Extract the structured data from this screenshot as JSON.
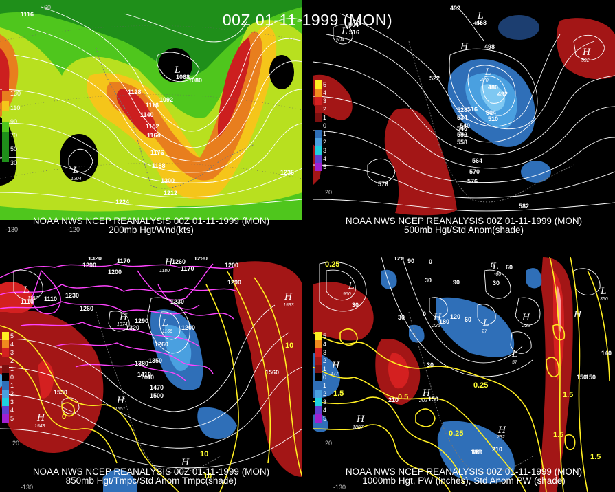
{
  "title": "00Z 01-11-1999 (MON)",
  "panels": {
    "tl": {
      "caption1": "NOAA NWS NCEP REANALYSIS 00Z 01-11-1999 (MON)",
      "caption2": "200mb Hgt/Wnd(kts)",
      "legend": [
        "130",
        "110",
        "90",
        "70",
        "50",
        "30"
      ],
      "contours": [
        "1116",
        "1128",
        "1140",
        "1152",
        "1164",
        "1176",
        "1188",
        "1200",
        "1212",
        "1224",
        "1236",
        "1080",
        "1068",
        "1092",
        "1116"
      ],
      "systems": [
        {
          "letter": "L",
          "value": "1204"
        },
        {
          "letter": "L",
          "value": "1068"
        }
      ],
      "latlon": [
        "60",
        "-120",
        "-130"
      ]
    },
    "tr": {
      "caption1": "NOAA NWS NCEP REANALYSIS 00Z 01-11-1999 (MON)",
      "caption2": "500mb Hgt/Std Anom(shade)",
      "legend": [
        "5",
        "4",
        "3",
        "2",
        "1",
        "0",
        "1",
        "2",
        "3",
        "4",
        "5"
      ],
      "contours": [
        "492",
        "504",
        "516",
        "498",
        "522",
        "480",
        "492",
        "504",
        "510",
        "528",
        "516",
        "534",
        "540",
        "546",
        "552",
        "558",
        "564",
        "570",
        "576",
        "576",
        "582",
        "468"
      ],
      "systems": [
        {
          "letter": "L",
          "value": "504"
        },
        {
          "letter": "H",
          "value": "592"
        },
        {
          "letter": "L",
          "value": "470"
        },
        {
          "letter": "H",
          "value": ""
        },
        {
          "letter": "L",
          "value": "494"
        }
      ],
      "latlon": [
        "20"
      ]
    },
    "bl": {
      "caption1": "NOAA NWS NCEP REANALYSIS 00Z 01-11-1999 (MON)",
      "caption2": "850mb Hgt/Tmpc/Std Anom Tmpc(shade)",
      "legend": [
        "5",
        "4",
        "3",
        "2",
        "1",
        "0",
        "1",
        "2",
        "3",
        "4",
        "5"
      ],
      "contours": [
        "1320",
        "1170",
        "1290",
        "1200",
        "1290",
        "1110",
        "1230",
        "1260",
        "1230",
        "1290",
        "1320",
        "1200",
        "1260",
        "1350",
        "1380",
        "1410",
        "1440",
        "1470",
        "1500",
        "1530",
        "1560",
        "1170",
        "1260",
        "1110",
        "1200",
        "1290"
      ],
      "temps": [
        "0",
        "10",
        "10",
        "10",
        "20"
      ],
      "systems": [
        {
          "letter": "L",
          "value": "1107"
        },
        {
          "letter": "H",
          "value": "1374"
        },
        {
          "letter": "L",
          "value": "1166"
        },
        {
          "letter": "H",
          "value": "1551"
        },
        {
          "letter": "H",
          "value": "1543"
        },
        {
          "letter": "H",
          "value": "1533"
        },
        {
          "letter": "H",
          "value": "1180"
        },
        {
          "letter": "H",
          "value": ""
        }
      ],
      "latlon": [
        "-130",
        "20"
      ]
    },
    "br": {
      "caption1": "NOAA NWS NCEP REANALYSIS 00Z 01-11-1999 (MON)",
      "caption2": "1000mb Hgt, PW (inches), Std Anom PW (shade)",
      "legend": [
        "5",
        "4",
        "3",
        "2",
        "1",
        "0",
        "1",
        "2",
        "3",
        "4",
        "5"
      ],
      "contours": [
        "120",
        "90",
        "0",
        "30",
        "90",
        "60",
        "0",
        "30",
        "120",
        "180",
        "0",
        "60",
        "30",
        "30",
        "150",
        "180",
        "210",
        "150",
        "210",
        "180",
        "140",
        "30",
        "150"
      ],
      "pw": [
        "0.25",
        "1.5",
        "0.25",
        "0.5",
        "0.25",
        "1.5",
        "1.5",
        "1.5"
      ],
      "systems": [
        {
          "letter": "L",
          "value": "960"
        },
        {
          "letter": "H",
          "value": "177"
        },
        {
          "letter": "L",
          "value": "27"
        },
        {
          "letter": "H",
          "value": "226"
        },
        {
          "letter": "L",
          "value": "-60"
        },
        {
          "letter": "H",
          "value": "232"
        },
        {
          "letter": "H",
          "value": "1887"
        },
        {
          "letter": "L",
          "value": "350"
        },
        {
          "letter": "H",
          "value": "202"
        },
        {
          "letter": "H",
          "value": "140"
        },
        {
          "letter": "L",
          "value": "57"
        },
        {
          "letter": "H",
          "value": "222"
        }
      ],
      "latlon": [
        "-130",
        "20"
      ]
    }
  },
  "colors": {
    "wind130": "#cc1f1f",
    "wind110": "#e87e1e",
    "wind90": "#f5c51a",
    "wind70": "#b8e01f",
    "wind50": "#4fc61d",
    "wind30": "#1f8f1a",
    "anomPos": "#a31616",
    "anomNeg": "#2f6fb8",
    "pwContour": "#ffee22",
    "tempContour": "#ff44ff"
  }
}
